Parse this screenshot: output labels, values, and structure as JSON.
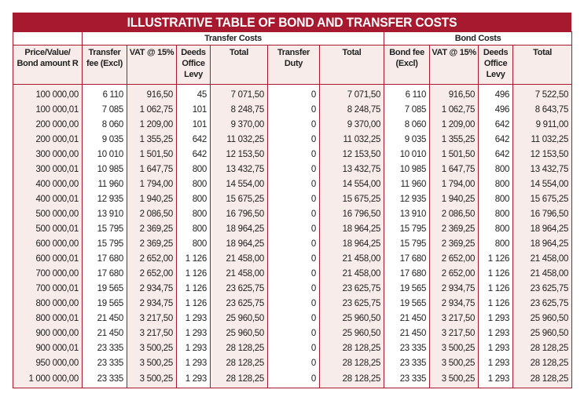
{
  "title": "ILLUSTRATIVE TABLE OF BOND AND TRANSFER COSTS",
  "groups": {
    "transfer": "Transfer Costs",
    "bond": "Bond Costs"
  },
  "columns": [
    {
      "label": "Price/Value/ Bond amount R"
    },
    {
      "label": "Transfer fee (Excl)"
    },
    {
      "label": "VAT @ 15%"
    },
    {
      "label": "Deeds Office Levy"
    },
    {
      "label": "Total"
    },
    {
      "label": "Transfer Duty"
    },
    {
      "label": "Total"
    },
    {
      "label": "Bond fee (Excl)"
    },
    {
      "label": "VAT @ 15%"
    },
    {
      "label": "Deeds Office Levy"
    },
    {
      "label": "Total"
    }
  ],
  "colors": {
    "accent": "#a6192e",
    "shade": "#f7ecea"
  },
  "rows": [
    [
      "100 000,00",
      "6 110",
      "916,50",
      "45",
      "7 071,50",
      "0",
      "7 071,50",
      "6 110",
      "916,50",
      "496",
      "7 522,50"
    ],
    [
      "100 000,01",
      "7 085",
      "1 062,75",
      "101",
      "8 248,75",
      "0",
      "8 248,75",
      "7 085",
      "1 062,75",
      "496",
      "8 643,75"
    ],
    [
      "200 000,00",
      "8 060",
      "1 209,00",
      "101",
      "9 370,00",
      "0",
      "9 370,00",
      "8 060",
      "1 209,00",
      "642",
      "9 911,00"
    ],
    [
      "200 000,01",
      "9 035",
      "1 355,25",
      "642",
      "11 032,25",
      "0",
      "11 032,25",
      "9 035",
      "1 355,25",
      "642",
      "11 032,25"
    ],
    [
      "300 000,00",
      "10 010",
      "1 501,50",
      "642",
      "12 153,50",
      "0",
      "12 153,50",
      "10 010",
      "1 501,50",
      "642",
      "12 153,50"
    ],
    [
      "300 000,01",
      "10 985",
      "1 647,75",
      "800",
      "13 432,75",
      "0",
      "13 432,75",
      "10 985",
      "1 647,75",
      "800",
      "13 432,75"
    ],
    [
      "400 000,00",
      "11 960",
      "1 794,00",
      "800",
      "14 554,00",
      "0",
      "14 554,00",
      "11 960",
      "1 794,00",
      "800",
      "14 554,00"
    ],
    [
      "400 000,01",
      "12 935",
      "1 940,25",
      "800",
      "15 675,25",
      "0",
      "15 675,25",
      "12 935",
      "1 940,25",
      "800",
      "15 675,25"
    ],
    [
      "500 000,00",
      "13 910",
      "2 086,50",
      "800",
      "16 796,50",
      "0",
      "16 796,50",
      "13 910",
      "2 086,50",
      "800",
      "16 796,50"
    ],
    [
      "500 000,01",
      "15 795",
      "2 369,25",
      "800",
      "18 964,25",
      "0",
      "18 964,25",
      "15 795",
      "2 369,25",
      "800",
      "18 964,25"
    ],
    [
      "600 000,00",
      "15 795",
      "2 369,25",
      "800",
      "18 964,25",
      "0",
      "18 964,25",
      "15 795",
      "2 369,25",
      "800",
      "18 964,25"
    ],
    [
      "600 000,01",
      "17 680",
      "2 652,00",
      "1 126",
      "21 458,00",
      "0",
      "21 458,00",
      "17 680",
      "2 652,00",
      "1 126",
      "21 458,00"
    ],
    [
      "700 000,00",
      "17 680",
      "2 652,00",
      "1 126",
      "21 458,00",
      "0",
      "21 458,00",
      "17 680",
      "2 652,00",
      "1 126",
      "21 458,00"
    ],
    [
      "700 000,01",
      "19 565",
      "2 934,75",
      "1 126",
      "23 625,75",
      "0",
      "23 625,75",
      "19 565",
      "2 934,75",
      "1 126",
      "23 625,75"
    ],
    [
      "800 000,00",
      "19 565",
      "2 934,75",
      "1 126",
      "23 625,75",
      "0",
      "23 625,75",
      "19 565",
      "2 934,75",
      "1 126",
      "23 625,75"
    ],
    [
      "800 000,01",
      "21 450",
      "3 217,50",
      "1 293",
      "25 960,50",
      "0",
      "25 960,50",
      "21 450",
      "3 217,50",
      "1 293",
      "25 960,50"
    ],
    [
      "900 000,00",
      "21 450",
      "3 217,50",
      "1 293",
      "25 960,50",
      "0",
      "25 960,50",
      "21 450",
      "3 217,50",
      "1 293",
      "25 960,50"
    ],
    [
      "900 000,01",
      "23 335",
      "3 500,25",
      "1 293",
      "28 128,25",
      "0",
      "28 128,25",
      "23 335",
      "3 500,25",
      "1 293",
      "28 128,25"
    ],
    [
      "950 000,00",
      "23 335",
      "3 500,25",
      "1 293",
      "28 128,25",
      "0",
      "28 128,25",
      "23 335",
      "3 500,25",
      "1 293",
      "28 128,25"
    ],
    [
      "1 000 000,00",
      "23 335",
      "3 500,25",
      "1 293",
      "28 128,25",
      "0",
      "28 128,25",
      "23 335",
      "3 500,25",
      "1 293",
      "28 128,25"
    ]
  ]
}
